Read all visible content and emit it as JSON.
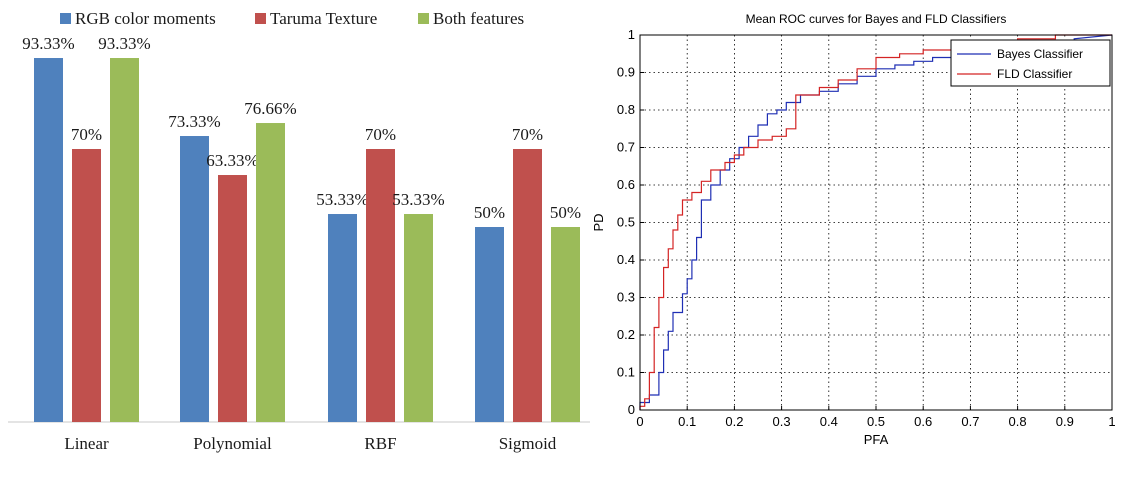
{
  "colors": {
    "rgb": "#4f81bd",
    "taruma": "#c0504d",
    "both": "#9bbb59",
    "bayes": "#1f2fb4",
    "fld": "#d42424"
  },
  "chart_data": [
    {
      "type": "bar",
      "title": "",
      "xlabel": "",
      "ylabel": "",
      "ylim": [
        0,
        100
      ],
      "grid": false,
      "legend_position": "top",
      "categories": [
        "Linear",
        "Polynomial",
        "RBF",
        "Sigmoid"
      ],
      "series": [
        {
          "name": "RGB color moments",
          "values": [
            93.33,
            73.33,
            53.33,
            50
          ],
          "labels": [
            "93.33%",
            "73.33%",
            "53.33%",
            "50%"
          ]
        },
        {
          "name": "Taruma Texture",
          "values": [
            70,
            63.33,
            70,
            70
          ],
          "labels": [
            "70%",
            "63.33%",
            "70%",
            "70%"
          ]
        },
        {
          "name": "Both features",
          "values": [
            93.33,
            76.66,
            53.33,
            50
          ],
          "labels": [
            "93.33%",
            "76.66%",
            "53.33%",
            "50%"
          ]
        }
      ]
    },
    {
      "type": "line",
      "title": "Mean ROC curves for Bayes and FLD Classifiers",
      "xlabel": "PFA",
      "ylabel": "PD",
      "xlim": [
        0,
        1
      ],
      "ylim": [
        0,
        1
      ],
      "grid": true,
      "legend_position": "top-right",
      "xticks": [
        "0",
        "0.1",
        "0.2",
        "0.3",
        "0.4",
        "0.5",
        "0.6",
        "0.7",
        "0.8",
        "0.9",
        "1"
      ],
      "yticks": [
        "0",
        "0.1",
        "0.2",
        "0.3",
        "0.4",
        "0.5",
        "0.6",
        "0.7",
        "0.8",
        "0.9",
        "1"
      ],
      "series": [
        {
          "name": "Bayes Classifier",
          "x": [
            0,
            0,
            0.02,
            0.02,
            0.04,
            0.04,
            0.05,
            0.05,
            0.06,
            0.06,
            0.07,
            0.07,
            0.09,
            0.09,
            0.1,
            0.1,
            0.11,
            0.11,
            0.12,
            0.12,
            0.13,
            0.13,
            0.15,
            0.15,
            0.17,
            0.17,
            0.19,
            0.19,
            0.21,
            0.21,
            0.23,
            0.23,
            0.25,
            0.25,
            0.27,
            0.27,
            0.29,
            0.29,
            0.31,
            0.31,
            0.34,
            0.34,
            0.38,
            0.38,
            0.42,
            0.42,
            0.46,
            0.46,
            0.5,
            0.5,
            0.54,
            0.54,
            0.58,
            0.58,
            0.62,
            0.62,
            0.67,
            0.67,
            0.72,
            0.72,
            0.78,
            0.78,
            0.85,
            0.85,
            0.92,
            0.92,
            1.0
          ],
          "y": [
            0,
            0.02,
            0.02,
            0.04,
            0.04,
            0.1,
            0.1,
            0.16,
            0.16,
            0.21,
            0.21,
            0.26,
            0.26,
            0.31,
            0.31,
            0.35,
            0.35,
            0.4,
            0.4,
            0.46,
            0.46,
            0.56,
            0.56,
            0.6,
            0.6,
            0.64,
            0.64,
            0.67,
            0.67,
            0.7,
            0.7,
            0.73,
            0.73,
            0.76,
            0.76,
            0.79,
            0.79,
            0.8,
            0.8,
            0.82,
            0.82,
            0.84,
            0.84,
            0.85,
            0.85,
            0.87,
            0.87,
            0.89,
            0.89,
            0.91,
            0.91,
            0.92,
            0.92,
            0.93,
            0.93,
            0.94,
            0.94,
            0.95,
            0.95,
            0.96,
            0.96,
            0.97,
            0.97,
            0.98,
            0.98,
            0.99,
            1.0
          ]
        },
        {
          "name": "FLD Classifier",
          "x": [
            0,
            0,
            0.01,
            0.01,
            0.02,
            0.02,
            0.03,
            0.03,
            0.04,
            0.04,
            0.05,
            0.05,
            0.06,
            0.06,
            0.07,
            0.07,
            0.08,
            0.08,
            0.09,
            0.09,
            0.11,
            0.11,
            0.13,
            0.13,
            0.15,
            0.15,
            0.18,
            0.18,
            0.2,
            0.2,
            0.22,
            0.22,
            0.25,
            0.25,
            0.28,
            0.28,
            0.31,
            0.31,
            0.33,
            0.33,
            0.38,
            0.38,
            0.42,
            0.42,
            0.46,
            0.46,
            0.5,
            0.5,
            0.55,
            0.55,
            0.6,
            0.6,
            0.66,
            0.66,
            0.72,
            0.72,
            0.8,
            0.8,
            0.88,
            0.88,
            1.0
          ],
          "y": [
            0,
            0.01,
            0.01,
            0.03,
            0.03,
            0.1,
            0.1,
            0.22,
            0.22,
            0.3,
            0.3,
            0.38,
            0.38,
            0.43,
            0.43,
            0.48,
            0.48,
            0.52,
            0.52,
            0.56,
            0.56,
            0.58,
            0.58,
            0.61,
            0.61,
            0.64,
            0.64,
            0.66,
            0.66,
            0.68,
            0.68,
            0.7,
            0.7,
            0.72,
            0.72,
            0.73,
            0.73,
            0.75,
            0.75,
            0.84,
            0.84,
            0.86,
            0.86,
            0.88,
            0.88,
            0.91,
            0.91,
            0.94,
            0.94,
            0.95,
            0.95,
            0.96,
            0.96,
            0.97,
            0.97,
            0.98,
            0.98,
            0.99,
            0.99,
            1.0,
            1.0
          ]
        }
      ]
    }
  ]
}
